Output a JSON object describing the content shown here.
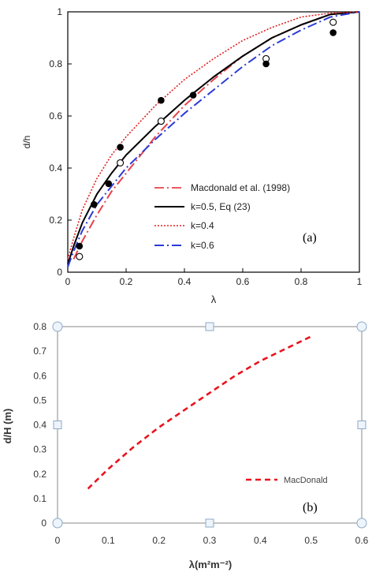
{
  "chart_data": [
    {
      "type": "line",
      "panel_label": "(a)",
      "xlabel": "λ",
      "ylabel": "d/h",
      "xlim": [
        0,
        1
      ],
      "ylim": [
        0,
        1
      ],
      "xticks": [
        "0",
        "0.2",
        "0.4",
        "0.6",
        "0.8",
        "1"
      ],
      "yticks": [
        "0",
        "0.2",
        "0.4",
        "0.6",
        "0.8",
        "1"
      ],
      "legend_position": "bottom-right",
      "series": [
        {
          "name": "Macdonald et al. (1998)",
          "color": "#e8434a",
          "style": "dashdot",
          "x": [
            0.02,
            0.05,
            0.1,
            0.15,
            0.2,
            0.3,
            0.4,
            0.5,
            0.6,
            0.7,
            0.8,
            0.9,
            1.0
          ],
          "y": [
            0.05,
            0.12,
            0.22,
            0.31,
            0.38,
            0.52,
            0.64,
            0.74,
            0.83,
            0.9,
            0.95,
            0.99,
            1.0
          ]
        },
        {
          "name": "k=0.5, Eq (23)",
          "color": "#000000",
          "style": "solid",
          "x": [
            0.0,
            0.02,
            0.05,
            0.1,
            0.15,
            0.2,
            0.3,
            0.4,
            0.5,
            0.6,
            0.7,
            0.8,
            0.9,
            1.0
          ],
          "y": [
            0.03,
            0.1,
            0.19,
            0.3,
            0.38,
            0.45,
            0.56,
            0.66,
            0.75,
            0.83,
            0.9,
            0.95,
            0.99,
            1.0
          ]
        },
        {
          "name": "k=0.4",
          "color": "#e02020",
          "style": "dotted",
          "x": [
            0.0,
            0.02,
            0.05,
            0.1,
            0.15,
            0.2,
            0.3,
            0.4,
            0.5,
            0.6,
            0.7,
            0.8,
            0.9,
            1.0
          ],
          "y": [
            0.05,
            0.13,
            0.24,
            0.36,
            0.45,
            0.52,
            0.64,
            0.74,
            0.82,
            0.89,
            0.94,
            0.98,
            0.995,
            1.0
          ]
        },
        {
          "name": "k=0.6",
          "color": "#2b3bd6",
          "style": "dashdot",
          "x": [
            0.0,
            0.02,
            0.05,
            0.1,
            0.15,
            0.2,
            0.3,
            0.4,
            0.5,
            0.6,
            0.7,
            0.8,
            0.9,
            1.0
          ],
          "y": [
            0.02,
            0.08,
            0.16,
            0.26,
            0.33,
            0.4,
            0.51,
            0.61,
            0.7,
            0.79,
            0.87,
            0.93,
            0.98,
            1.0
          ]
        }
      ],
      "points_filled": [
        {
          "x": 0.04,
          "y": 0.1
        },
        {
          "x": 0.09,
          "y": 0.26
        },
        {
          "x": 0.14,
          "y": 0.34
        },
        {
          "x": 0.18,
          "y": 0.48
        },
        {
          "x": 0.32,
          "y": 0.66
        },
        {
          "x": 0.43,
          "y": 0.68
        },
        {
          "x": 0.68,
          "y": 0.8
        },
        {
          "x": 0.91,
          "y": 0.92
        }
      ],
      "points_open": [
        {
          "x": 0.04,
          "y": 0.06
        },
        {
          "x": 0.18,
          "y": 0.42
        },
        {
          "x": 0.32,
          "y": 0.58
        },
        {
          "x": 0.68,
          "y": 0.82
        },
        {
          "x": 0.91,
          "y": 0.96
        }
      ]
    },
    {
      "type": "line",
      "panel_label": "(b)",
      "xlabel": "λ(m²m⁻²)",
      "ylabel": "d/H (m)",
      "xlim": [
        0,
        0.6
      ],
      "ylim": [
        0,
        0.8
      ],
      "xticks": [
        "0",
        "0.1",
        "0.2",
        "0.3",
        "0.4",
        "0.5",
        "0.6"
      ],
      "yticks": [
        "0",
        "0.1",
        "0.2",
        "0.3",
        "0.4",
        "0.5",
        "0.6",
        "0.7",
        "0.8"
      ],
      "legend_position": "right",
      "series": [
        {
          "name": "MacDonald",
          "color": "#e8141e",
          "style": "dashed",
          "x": [
            0.06,
            0.1,
            0.15,
            0.2,
            0.25,
            0.3,
            0.35,
            0.4,
            0.45,
            0.5
          ],
          "y": [
            0.14,
            0.22,
            0.31,
            0.39,
            0.46,
            0.53,
            0.6,
            0.66,
            0.71,
            0.76
          ]
        }
      ]
    }
  ]
}
